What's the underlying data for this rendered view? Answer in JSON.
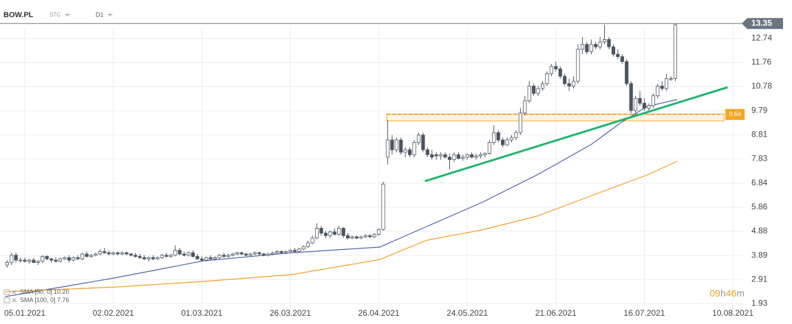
{
  "chart_data": {
    "type": "candlestick",
    "header": {
      "symbol": "BOW.PL",
      "market": "STC",
      "interval": "D1"
    },
    "x": [
      -4,
      -3,
      -2,
      -1,
      0,
      1,
      2,
      3,
      4,
      5,
      6,
      7,
      8,
      9,
      10,
      11,
      12,
      13,
      14,
      15,
      16,
      17,
      18,
      19,
      20,
      21,
      22,
      23,
      24,
      25,
      26,
      27,
      28,
      29,
      30,
      31,
      32,
      33,
      34,
      35,
      36,
      37,
      38,
      39,
      40,
      41,
      42,
      43,
      44,
      45,
      46,
      47,
      48,
      49,
      50,
      51,
      52,
      53,
      54,
      55,
      56,
      57,
      58,
      59,
      60,
      61,
      62,
      63,
      64,
      65,
      66,
      67,
      68,
      69,
      70,
      71,
      72,
      73,
      74,
      75,
      76,
      77,
      78,
      79,
      80,
      81,
      82,
      83,
      84,
      85,
      86,
      87,
      88,
      89,
      90,
      91,
      92,
      93,
      94,
      95,
      96,
      97,
      98,
      99,
      100,
      101,
      102,
      103,
      104,
      105,
      106,
      107,
      108,
      109,
      110,
      111,
      112,
      113,
      114,
      115,
      116,
      117,
      118,
      119,
      120,
      121,
      122,
      123,
      124,
      125,
      126,
      127,
      128,
      129,
      130,
      131,
      132,
      133,
      134,
      135,
      136,
      137,
      138,
      139,
      140,
      141,
      142,
      143,
      144,
      145,
      146,
      147
    ],
    "ohlc": [
      [
        3.5,
        3.7,
        3.4,
        3.6
      ],
      [
        3.6,
        4.0,
        3.5,
        3.9
      ],
      [
        3.9,
        4.0,
        3.6,
        3.7
      ],
      [
        3.7,
        3.8,
        3.6,
        3.7
      ],
      [
        3.7,
        3.8,
        3.6,
        3.65
      ],
      [
        3.65,
        3.75,
        3.55,
        3.7
      ],
      [
        3.7,
        3.8,
        3.6,
        3.6
      ],
      [
        3.6,
        3.7,
        3.5,
        3.65
      ],
      [
        3.65,
        3.9,
        3.6,
        3.85
      ],
      [
        3.85,
        3.9,
        3.7,
        3.75
      ],
      [
        3.75,
        3.8,
        3.6,
        3.7
      ],
      [
        3.7,
        3.8,
        3.6,
        3.65
      ],
      [
        3.65,
        3.8,
        3.6,
        3.75
      ],
      [
        3.75,
        3.85,
        3.7,
        3.8
      ],
      [
        3.8,
        3.9,
        3.6,
        3.7
      ],
      [
        3.7,
        3.85,
        3.65,
        3.8
      ],
      [
        3.8,
        3.9,
        3.7,
        3.75
      ],
      [
        3.75,
        4.0,
        3.7,
        3.95
      ],
      [
        3.95,
        4.05,
        3.8,
        3.85
      ],
      [
        3.85,
        3.95,
        3.8,
        3.9
      ],
      [
        3.9,
        4.0,
        3.85,
        3.95
      ],
      [
        3.95,
        4.15,
        3.9,
        4.05
      ],
      [
        4.05,
        4.2,
        3.95,
        4.0
      ],
      [
        4.0,
        4.1,
        3.9,
        3.95
      ],
      [
        3.95,
        4.05,
        3.9,
        4.0
      ],
      [
        4.0,
        4.05,
        3.9,
        3.95
      ],
      [
        3.95,
        4.05,
        3.9,
        4.0
      ],
      [
        4.0,
        4.05,
        3.9,
        3.95
      ],
      [
        3.95,
        4.0,
        3.85,
        3.9
      ],
      [
        3.9,
        4.0,
        3.8,
        3.85
      ],
      [
        3.85,
        3.95,
        3.75,
        3.8
      ],
      [
        3.8,
        3.9,
        3.7,
        3.75
      ],
      [
        3.75,
        3.85,
        3.65,
        3.8
      ],
      [
        3.8,
        3.9,
        3.7,
        3.75
      ],
      [
        3.75,
        3.85,
        3.7,
        3.8
      ],
      [
        3.8,
        3.95,
        3.75,
        3.9
      ],
      [
        3.9,
        4.0,
        3.8,
        3.85
      ],
      [
        3.85,
        3.95,
        3.8,
        3.9
      ],
      [
        3.9,
        4.3,
        3.85,
        4.1
      ],
      [
        4.1,
        4.2,
        3.9,
        3.95
      ],
      [
        3.95,
        4.05,
        3.85,
        3.9
      ],
      [
        3.9,
        4.05,
        3.85,
        4.0
      ],
      [
        4.0,
        4.1,
        3.8,
        3.85
      ],
      [
        3.85,
        3.95,
        3.7,
        3.75
      ],
      [
        3.75,
        3.85,
        3.65,
        3.7
      ],
      [
        3.7,
        3.85,
        3.65,
        3.8
      ],
      [
        3.8,
        3.9,
        3.7,
        3.75
      ],
      [
        3.75,
        3.85,
        3.7,
        3.8
      ],
      [
        3.8,
        3.95,
        3.75,
        3.9
      ],
      [
        3.9,
        4.0,
        3.8,
        3.85
      ],
      [
        3.85,
        3.95,
        3.8,
        3.9
      ],
      [
        3.9,
        4.0,
        3.85,
        3.95
      ],
      [
        3.95,
        4.05,
        3.9,
        4.0
      ],
      [
        4.0,
        4.05,
        3.9,
        3.95
      ],
      [
        3.95,
        4.0,
        3.85,
        3.9
      ],
      [
        3.9,
        4.0,
        3.85,
        3.95
      ],
      [
        3.95,
        4.05,
        3.9,
        4.0
      ],
      [
        4.0,
        4.05,
        3.9,
        3.95
      ],
      [
        3.95,
        4.0,
        3.85,
        3.9
      ],
      [
        3.9,
        4.0,
        3.85,
        3.95
      ],
      [
        3.95,
        4.05,
        3.9,
        4.0
      ],
      [
        4.0,
        4.1,
        3.95,
        4.05
      ],
      [
        4.05,
        4.1,
        3.95,
        4.0
      ],
      [
        4.0,
        4.1,
        3.95,
        4.05
      ],
      [
        4.05,
        4.15,
        4.0,
        4.1
      ],
      [
        4.1,
        4.2,
        4.0,
        4.05
      ],
      [
        4.05,
        4.2,
        4.0,
        4.15
      ],
      [
        4.15,
        4.3,
        4.1,
        4.25
      ],
      [
        4.25,
        4.5,
        4.2,
        4.4
      ],
      [
        4.4,
        4.7,
        4.35,
        4.6
      ],
      [
        4.6,
        5.2,
        4.55,
        5.0
      ],
      [
        5.0,
        5.1,
        4.7,
        4.8
      ],
      [
        4.8,
        4.9,
        4.6,
        4.7
      ],
      [
        4.7,
        4.9,
        4.6,
        4.85
      ],
      [
        4.85,
        5.0,
        4.7,
        4.75
      ],
      [
        4.75,
        5.1,
        4.7,
        5.0
      ],
      [
        5.0,
        5.05,
        4.6,
        4.7
      ],
      [
        4.7,
        4.8,
        4.55,
        4.6
      ],
      [
        4.6,
        4.7,
        4.55,
        4.65
      ],
      [
        4.65,
        4.7,
        4.55,
        4.6
      ],
      [
        4.6,
        4.7,
        4.55,
        4.65
      ],
      [
        4.65,
        4.75,
        4.6,
        4.7
      ],
      [
        4.7,
        4.75,
        4.6,
        4.65
      ],
      [
        4.65,
        4.8,
        4.6,
        4.75
      ],
      [
        4.75,
        5.0,
        4.7,
        4.95
      ],
      [
        4.95,
        6.9,
        4.9,
        6.8
      ],
      [
        7.9,
        9.4,
        7.6,
        8.6
      ],
      [
        8.6,
        8.8,
        8.0,
        8.2
      ],
      [
        8.2,
        8.7,
        8.1,
        8.6
      ],
      [
        8.6,
        8.7,
        8.0,
        8.1
      ],
      [
        8.1,
        8.3,
        7.9,
        8.2
      ],
      [
        8.2,
        8.3,
        7.9,
        8.0
      ],
      [
        8.0,
        8.6,
        7.9,
        8.5
      ],
      [
        8.5,
        8.9,
        8.4,
        8.8
      ],
      [
        8.8,
        8.9,
        8.1,
        8.2
      ],
      [
        8.2,
        8.3,
        7.9,
        8.0
      ],
      [
        8.0,
        8.2,
        7.8,
        7.9
      ],
      [
        8.0,
        8.1,
        7.8,
        7.95
      ],
      [
        7.95,
        8.1,
        7.8,
        8.0
      ],
      [
        8.0,
        8.1,
        7.85,
        7.9
      ],
      [
        7.9,
        8.05,
        7.4,
        7.8
      ],
      [
        7.8,
        8.1,
        7.7,
        8.0
      ],
      [
        8.0,
        8.1,
        7.8,
        7.85
      ],
      [
        7.85,
        8.0,
        7.75,
        7.9
      ],
      [
        7.9,
        8.05,
        7.8,
        8.0
      ],
      [
        8.0,
        8.1,
        7.85,
        7.9
      ],
      [
        7.9,
        8.05,
        7.8,
        7.95
      ],
      [
        7.95,
        8.1,
        7.85,
        8.0
      ],
      [
        8.0,
        8.1,
        7.9,
        8.05
      ],
      [
        8.05,
        8.6,
        8.0,
        8.5
      ],
      [
        8.5,
        9.2,
        8.4,
        8.9
      ],
      [
        8.9,
        9.0,
        8.5,
        8.6
      ],
      [
        8.6,
        8.7,
        8.3,
        8.4
      ],
      [
        8.4,
        8.7,
        8.35,
        8.6
      ],
      [
        8.6,
        8.8,
        8.5,
        8.7
      ],
      [
        8.7,
        9.0,
        8.6,
        8.9
      ],
      [
        8.9,
        9.9,
        8.8,
        9.7
      ],
      [
        9.7,
        10.4,
        9.6,
        10.2
      ],
      [
        10.2,
        11.0,
        10.1,
        10.8
      ],
      [
        10.8,
        10.9,
        10.4,
        10.5
      ],
      [
        10.5,
        10.8,
        10.4,
        10.7
      ],
      [
        10.7,
        11.0,
        10.6,
        10.9
      ],
      [
        10.9,
        11.4,
        10.8,
        11.3
      ],
      [
        11.3,
        11.7,
        11.2,
        11.6
      ],
      [
        11.6,
        11.8,
        11.4,
        11.5
      ],
      [
        11.5,
        11.6,
        11.1,
        11.2
      ],
      [
        11.2,
        11.3,
        10.8,
        10.9
      ],
      [
        10.9,
        11.1,
        10.6,
        10.8
      ],
      [
        10.8,
        11.2,
        10.7,
        11.0
      ],
      [
        11.0,
        12.5,
        10.9,
        12.3
      ],
      [
        12.3,
        12.8,
        12.1,
        12.5
      ],
      [
        12.5,
        12.6,
        12.1,
        12.2
      ],
      [
        12.2,
        12.7,
        12.1,
        12.5
      ],
      [
        12.5,
        12.6,
        12.3,
        12.4
      ],
      [
        12.4,
        12.8,
        12.3,
        12.6
      ],
      [
        12.6,
        13.3,
        12.5,
        12.7
      ],
      [
        12.7,
        12.8,
        12.3,
        12.4
      ],
      [
        12.4,
        12.5,
        12.0,
        12.1
      ],
      [
        12.1,
        12.3,
        11.9,
        12.0
      ],
      [
        12.0,
        12.1,
        11.7,
        11.8
      ],
      [
        11.8,
        11.9,
        10.8,
        10.9
      ],
      [
        10.9,
        11.0,
        9.7,
        9.8
      ],
      [
        9.8,
        10.4,
        9.7,
        10.3
      ],
      [
        10.3,
        10.6,
        10.0,
        10.1
      ],
      [
        10.1,
        10.3,
        9.8,
        9.9
      ],
      [
        9.9,
        10.1,
        9.8,
        10.0
      ],
      [
        10.0,
        10.5,
        9.9,
        10.4
      ],
      [
        10.4,
        10.9,
        10.3,
        10.8
      ],
      [
        10.8,
        11.0,
        10.6,
        10.7
      ],
      [
        10.7,
        11.3,
        10.6,
        11.1
      ],
      [
        11.1,
        11.2,
        11.0,
        11.1
      ],
      [
        11.1,
        13.35,
        11.0,
        13.3
      ]
    ],
    "up_color": "#ffffff",
    "down_color": "#4a5561",
    "wick_color": "#4a5561",
    "series": [
      {
        "name": "SMA [50, 0]",
        "legend_value": {
          "value": 10.2,
          "label": "10.20"
        },
        "color": "#4d5fa3",
        "x": [
          -4.4,
          20.2,
          40.4,
          60.3,
          80.2,
          90.8,
          103.3,
          115.7,
          128.1,
          134.4,
          140.6,
          147.4
        ],
        "values": [
          2.21,
          2.97,
          3.67,
          4.0,
          4.23,
          5.07,
          6.05,
          7.17,
          8.43,
          9.27,
          9.97,
          10.25
        ]
      },
      {
        "name": "SMA [100, 0]",
        "legend_value": {
          "value": 7.76,
          "label": "7.76"
        },
        "color": "#f39c1f",
        "x": [
          -4.4,
          20.2,
          40.4,
          60.3,
          80.2,
          90.8,
          103.3,
          115.7,
          128.1,
          140.6,
          147.4
        ],
        "values": [
          2.41,
          2.6,
          2.83,
          3.11,
          3.72,
          4.51,
          4.93,
          5.49,
          6.33,
          7.17,
          7.73
        ]
      }
    ],
    "trendline": {
      "x": [
        90.4,
        158.8
      ],
      "y": [
        6.92,
        10.75
      ],
      "color": "#1db56e"
    },
    "zone": {
      "xlim": [
        81.8,
        158
      ],
      "ylim": [
        9.38,
        9.66
      ],
      "color": "#f5a623"
    },
    "level": 9.64,
    "last_price": 13.35,
    "xlim": [
      -5.6,
      163.1
    ],
    "ylim": [
      1.57,
      14.03
    ],
    "xticks": [
      {
        "value": 0,
        "label": "05.01.2021"
      },
      {
        "value": 20,
        "label": "02.02.2021"
      },
      {
        "value": 40,
        "label": "01.03.2021"
      },
      {
        "value": 60,
        "label": "26.03.2021"
      },
      {
        "value": 80,
        "label": "26.04.2021"
      },
      {
        "value": 100,
        "label": "24.05.2021"
      },
      {
        "value": 120,
        "label": "21.06.2021"
      },
      {
        "value": 140,
        "label": "16.07.2021"
      },
      {
        "value": 160,
        "label": "10.08.2021"
      }
    ],
    "yticks": [
      1.93,
      2.91,
      3.89,
      4.88,
      5.86,
      6.84,
      7.83,
      8.81,
      9.79,
      10.78,
      11.76,
      12.74
    ],
    "grid": true,
    "countdown": {
      "hours": "09",
      "h": "h",
      "minutes": "46",
      "m": "m"
    }
  }
}
